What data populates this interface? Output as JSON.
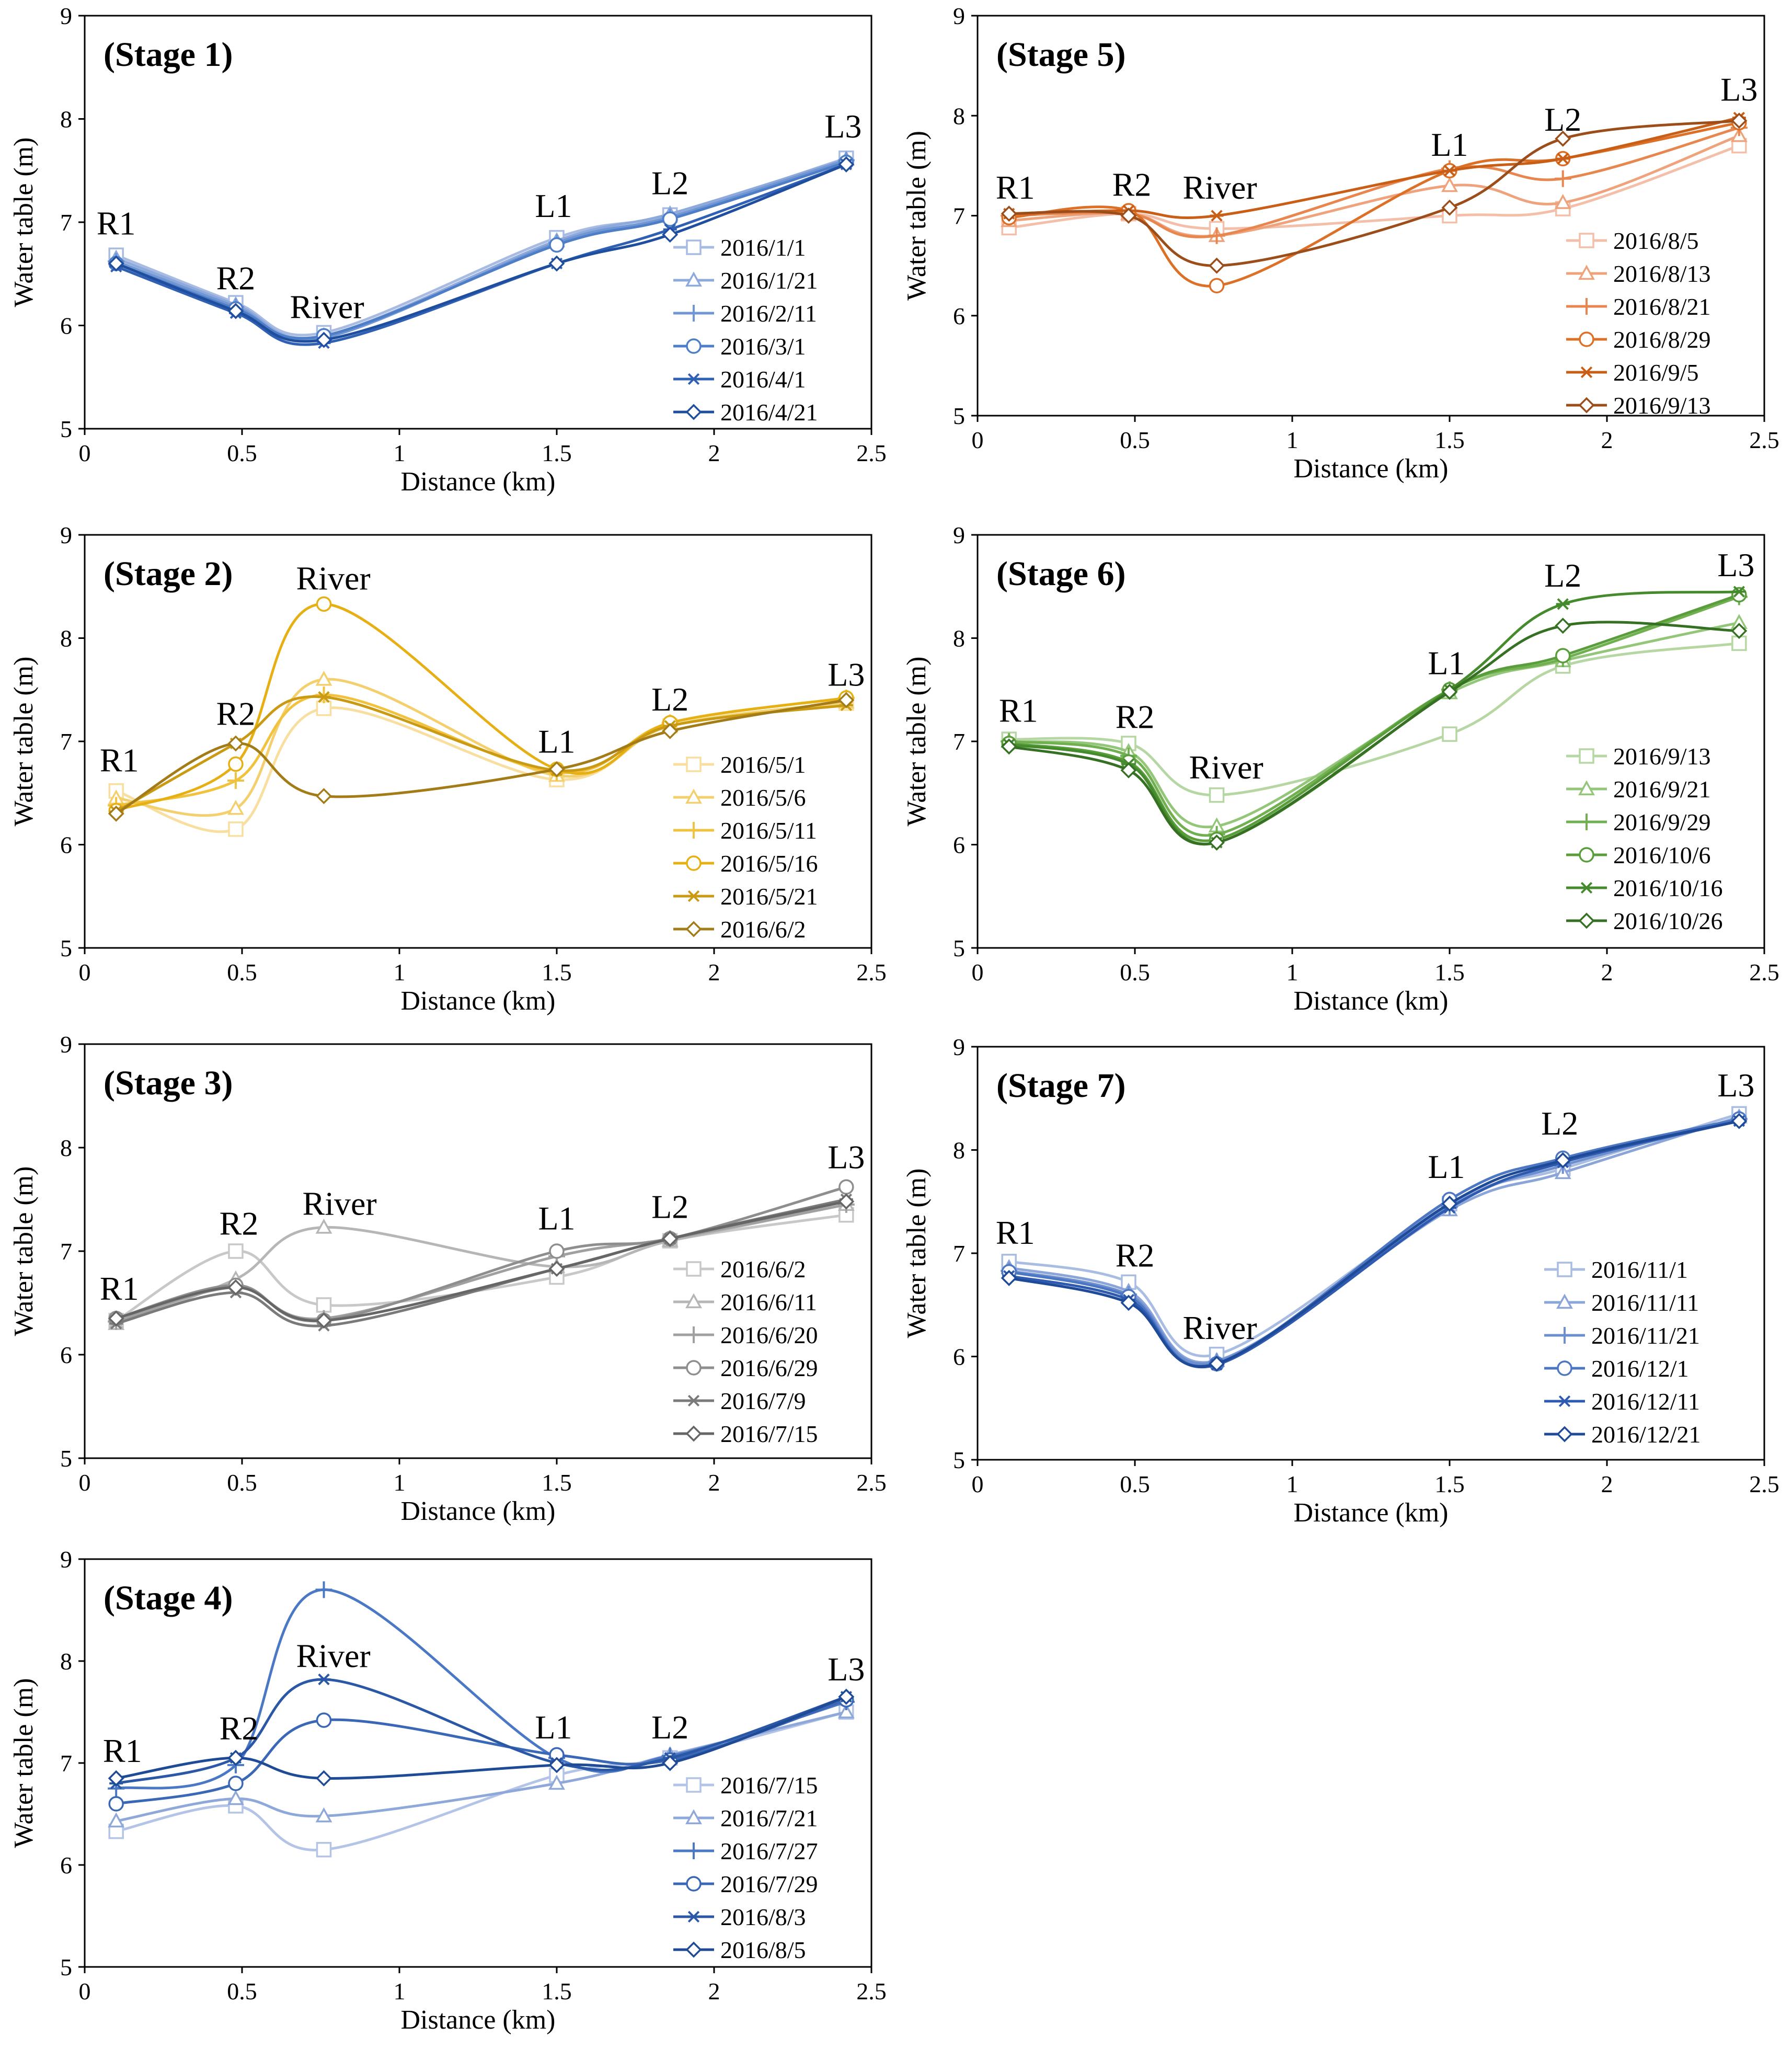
{
  "chart_data": [
    {
      "type": "line",
      "title": "(Stage 1)",
      "xlabel": "Distance (km)",
      "ylabel": "Water table (m)",
      "xlim": [
        0,
        2.5
      ],
      "ylim": [
        5,
        9
      ],
      "xticks": [
        "0",
        "0.5",
        "1",
        "1.5",
        "2",
        "2.5"
      ],
      "yticks": [
        "5",
        "6",
        "7",
        "8",
        "9"
      ],
      "x": [
        0.1,
        0.48,
        0.76,
        1.5,
        1.86,
        2.42
      ],
      "point_labels": [
        {
          "text": "R1",
          "x": 0.1,
          "y": 6.88
        },
        {
          "text": "R2",
          "x": 0.48,
          "y": 6.35
        },
        {
          "text": "River",
          "x": 0.77,
          "y": 6.07
        },
        {
          "text": "L1",
          "x": 1.49,
          "y": 7.05
        },
        {
          "text": "L2",
          "x": 1.86,
          "y": 7.27
        },
        {
          "text": "L3",
          "x": 2.41,
          "y": 7.82
        }
      ],
      "series": [
        {
          "name": "2016/1/1",
          "marker": "square",
          "color": "#a8bce3",
          "values": [
            6.68,
            6.22,
            5.93,
            6.85,
            7.07,
            7.62
          ]
        },
        {
          "name": "2016/1/21",
          "marker": "triangle",
          "color": "#8ea9dc",
          "values": [
            6.65,
            6.2,
            5.9,
            6.82,
            7.08,
            7.61
          ]
        },
        {
          "name": "2016/2/11",
          "marker": "plus",
          "color": "#7096d4",
          "values": [
            6.62,
            6.18,
            5.88,
            6.8,
            7.05,
            7.6
          ]
        },
        {
          "name": "2016/3/1",
          "marker": "circle",
          "color": "#4e7ec7",
          "values": [
            6.6,
            6.16,
            5.9,
            6.78,
            7.03,
            7.58
          ]
        },
        {
          "name": "2016/4/1",
          "marker": "star",
          "color": "#2f60b4",
          "values": [
            6.57,
            6.12,
            5.83,
            6.6,
            6.93,
            7.56
          ]
        },
        {
          "name": "2016/4/21",
          "marker": "diamond",
          "color": "#1f4e9e",
          "values": [
            6.6,
            6.14,
            5.86,
            6.6,
            6.88,
            7.56
          ]
        }
      ]
    },
    {
      "type": "line",
      "title": "(Stage 5)",
      "xlabel": "Distance (km)",
      "ylabel": "Water table (m)",
      "xlim": [
        0,
        2.5
      ],
      "ylim": [
        5,
        9
      ],
      "xticks": [
        "0",
        "0.5",
        "1",
        "1.5",
        "2",
        "2.5"
      ],
      "yticks": [
        "5",
        "6",
        "7",
        "8",
        "9"
      ],
      "x": [
        0.1,
        0.48,
        0.76,
        1.5,
        1.86,
        2.42
      ],
      "point_labels": [
        {
          "text": "R1",
          "x": 0.12,
          "y": 7.17
        },
        {
          "text": "R2",
          "x": 0.49,
          "y": 7.2
        },
        {
          "text": "River",
          "x": 0.77,
          "y": 7.17
        },
        {
          "text": "L1",
          "x": 1.5,
          "y": 7.6
        },
        {
          "text": "L2",
          "x": 1.86,
          "y": 7.85
        },
        {
          "text": "L3",
          "x": 2.42,
          "y": 8.15
        }
      ],
      "series": [
        {
          "name": "2016/8/5",
          "marker": "square",
          "color": "#f4bfa8",
          "values": [
            6.88,
            7.02,
            6.87,
            7.0,
            7.07,
            7.7
          ]
        },
        {
          "name": "2016/8/13",
          "marker": "triangle",
          "color": "#eea37c",
          "values": [
            6.95,
            7.02,
            6.8,
            7.3,
            7.13,
            7.8
          ]
        },
        {
          "name": "2016/8/21",
          "marker": "plus",
          "color": "#e7874f",
          "values": [
            7.0,
            7.02,
            6.8,
            7.47,
            7.37,
            7.88
          ]
        },
        {
          "name": "2016/8/29",
          "marker": "circle",
          "color": "#dc7027",
          "values": [
            6.98,
            7.05,
            6.3,
            7.45,
            7.57,
            7.93
          ]
        },
        {
          "name": "2016/9/5",
          "marker": "star",
          "color": "#c95e16",
          "values": [
            7.02,
            7.05,
            7.0,
            7.45,
            7.57,
            7.98
          ]
        },
        {
          "name": "2016/9/13",
          "marker": "diamond",
          "color": "#9b4d1a",
          "values": [
            7.02,
            7.0,
            6.5,
            7.08,
            7.77,
            7.95
          ]
        }
      ]
    },
    {
      "type": "line",
      "title": "(Stage 2)",
      "xlabel": "Distance (km)",
      "ylabel": "Water table (m)",
      "xlim": [
        0,
        2.5
      ],
      "ylim": [
        5,
        9
      ],
      "xticks": [
        "0",
        "0.5",
        "1",
        "1.5",
        "2",
        "2.5"
      ],
      "yticks": [
        "5",
        "6",
        "7",
        "8",
        "9"
      ],
      "x": [
        0.1,
        0.48,
        0.76,
        1.5,
        1.86,
        2.42
      ],
      "point_labels": [
        {
          "text": "R1",
          "x": 0.11,
          "y": 6.71
        },
        {
          "text": "R2",
          "x": 0.48,
          "y": 7.16
        },
        {
          "text": "River",
          "x": 0.79,
          "y": 8.47
        },
        {
          "text": "L1",
          "x": 1.5,
          "y": 6.89
        },
        {
          "text": "L2",
          "x": 1.86,
          "y": 7.3
        },
        {
          "text": "L3",
          "x": 2.42,
          "y": 7.54
        }
      ],
      "series": [
        {
          "name": "2016/5/1",
          "marker": "square",
          "color": "#f8dfa0",
          "values": [
            6.52,
            6.15,
            7.32,
            6.63,
            7.15,
            7.37
          ]
        },
        {
          "name": "2016/5/6",
          "marker": "triangle",
          "color": "#f4cf6d",
          "values": [
            6.45,
            6.35,
            7.6,
            6.67,
            7.15,
            7.38
          ]
        },
        {
          "name": "2016/5/11",
          "marker": "plus",
          "color": "#f0c23e",
          "values": [
            6.38,
            6.62,
            7.45,
            6.7,
            7.18,
            7.42
          ]
        },
        {
          "name": "2016/5/16",
          "marker": "circle",
          "color": "#e6b015",
          "values": [
            6.33,
            6.78,
            8.33,
            6.73,
            7.18,
            7.42
          ]
        },
        {
          "name": "2016/5/21",
          "marker": "star",
          "color": "#c99a12",
          "values": [
            6.32,
            6.98,
            7.43,
            6.72,
            7.15,
            7.35
          ]
        },
        {
          "name": "2016/6/2",
          "marker": "diamond",
          "color": "#a37c18",
          "values": [
            6.3,
            6.98,
            6.47,
            6.73,
            7.1,
            7.4
          ]
        }
      ]
    },
    {
      "type": "line",
      "title": "(Stage 6)",
      "xlabel": "Distance (km)",
      "ylabel": "Water table (m)",
      "xlim": [
        0,
        2.5
      ],
      "ylim": [
        5,
        9
      ],
      "xticks": [
        "0",
        "0.5",
        "1",
        "1.5",
        "2",
        "2.5"
      ],
      "yticks": [
        "5",
        "6",
        "7",
        "8",
        "9"
      ],
      "x": [
        0.1,
        0.48,
        0.76,
        1.5,
        1.86,
        2.42
      ],
      "point_labels": [
        {
          "text": "R1",
          "x": 0.13,
          "y": 7.19
        },
        {
          "text": "R2",
          "x": 0.5,
          "y": 7.13
        },
        {
          "text": "River",
          "x": 0.79,
          "y": 6.64
        },
        {
          "text": "L1",
          "x": 1.49,
          "y": 7.65
        },
        {
          "text": "L2",
          "x": 1.86,
          "y": 8.5
        },
        {
          "text": "L3",
          "x": 2.41,
          "y": 8.6
        }
      ],
      "series": [
        {
          "name": "2016/9/13",
          "marker": "square",
          "color": "#b6d7a3",
          "values": [
            7.02,
            6.98,
            6.48,
            7.07,
            7.73,
            7.95
          ]
        },
        {
          "name": "2016/9/21",
          "marker": "triangle",
          "color": "#94c67a",
          "values": [
            7.0,
            6.9,
            6.18,
            7.47,
            7.78,
            8.15
          ]
        },
        {
          "name": "2016/9/29",
          "marker": "plus",
          "color": "#70b050",
          "values": [
            7.0,
            6.86,
            6.1,
            7.5,
            7.8,
            8.4
          ]
        },
        {
          "name": "2016/10/6",
          "marker": "circle",
          "color": "#5a9e3c",
          "values": [
            6.98,
            6.8,
            6.05,
            7.5,
            7.83,
            8.42
          ]
        },
        {
          "name": "2016/10/16",
          "marker": "star",
          "color": "#458a2c",
          "values": [
            6.97,
            6.78,
            6.02,
            7.5,
            8.33,
            8.45
          ]
        },
        {
          "name": "2016/10/26",
          "marker": "diamond",
          "color": "#357023",
          "values": [
            6.95,
            6.72,
            6.02,
            7.48,
            8.12,
            8.07
          ]
        }
      ]
    },
    {
      "type": "line",
      "title": "(Stage 3)",
      "xlabel": "Distance (km)",
      "ylabel": "Water table (m)",
      "xlim": [
        0,
        2.5
      ],
      "ylim": [
        5,
        9
      ],
      "xticks": [
        "0",
        "0.5",
        "1",
        "1.5",
        "2",
        "2.5"
      ],
      "yticks": [
        "5",
        "6",
        "7",
        "8",
        "9"
      ],
      "x": [
        0.1,
        0.48,
        0.76,
        1.5,
        1.86,
        2.42
      ],
      "point_labels": [
        {
          "text": "R1",
          "x": 0.11,
          "y": 6.53
        },
        {
          "text": "R2",
          "x": 0.49,
          "y": 7.16
        },
        {
          "text": "River",
          "x": 0.81,
          "y": 7.35
        },
        {
          "text": "L1",
          "x": 1.5,
          "y": 7.21
        },
        {
          "text": "L2",
          "x": 1.86,
          "y": 7.32
        },
        {
          "text": "L3",
          "x": 2.42,
          "y": 7.8
        }
      ],
      "series": [
        {
          "name": "2016/6/2",
          "marker": "square",
          "color": "#c8c8c8",
          "values": [
            6.33,
            7.0,
            6.48,
            6.75,
            7.1,
            7.35
          ]
        },
        {
          "name": "2016/6/11",
          "marker": "triangle",
          "color": "#b6b6b6",
          "values": [
            6.3,
            6.73,
            7.23,
            6.85,
            7.1,
            7.45
          ]
        },
        {
          "name": "2016/6/20",
          "marker": "plus",
          "color": "#a0a0a0",
          "values": [
            6.32,
            6.65,
            6.35,
            6.95,
            7.12,
            7.45
          ]
        },
        {
          "name": "2016/6/29",
          "marker": "circle",
          "color": "#8e8e8e",
          "values": [
            6.35,
            6.67,
            6.33,
            7.0,
            7.12,
            7.62
          ]
        },
        {
          "name": "2016/7/9",
          "marker": "star",
          "color": "#7a7a7a",
          "values": [
            6.3,
            6.6,
            6.28,
            6.83,
            7.12,
            7.5
          ]
        },
        {
          "name": "2016/7/15",
          "marker": "diamond",
          "color": "#666666",
          "values": [
            6.35,
            6.65,
            6.33,
            6.83,
            7.12,
            7.48
          ]
        }
      ]
    },
    {
      "type": "line",
      "title": "(Stage 7)",
      "xlabel": "Distance (km)",
      "ylabel": "Water table (m)",
      "xlim": [
        0,
        2.5
      ],
      "ylim": [
        5,
        9
      ],
      "xticks": [
        "0",
        "0.5",
        "1",
        "1.5",
        "2",
        "2.5"
      ],
      "yticks": [
        "5",
        "6",
        "7",
        "8",
        "9"
      ],
      "x": [
        0.1,
        0.48,
        0.76,
        1.5,
        1.86,
        2.42
      ],
      "point_labels": [
        {
          "text": "R1",
          "x": 0.12,
          "y": 7.09
        },
        {
          "text": "R2",
          "x": 0.5,
          "y": 6.87
        },
        {
          "text": "River",
          "x": 0.77,
          "y": 6.17
        },
        {
          "text": "L1",
          "x": 1.49,
          "y": 7.73
        },
        {
          "text": "L2",
          "x": 1.85,
          "y": 8.15
        },
        {
          "text": "L3",
          "x": 2.41,
          "y": 8.52
        }
      ],
      "series": [
        {
          "name": "2016/11/1",
          "marker": "square",
          "color": "#a9bce2",
          "values": [
            6.92,
            6.72,
            6.02,
            7.48,
            7.82,
            8.35
          ]
        },
        {
          "name": "2016/11/11",
          "marker": "triangle",
          "color": "#8ba5d9",
          "values": [
            6.86,
            6.63,
            5.96,
            7.42,
            7.78,
            8.32
          ]
        },
        {
          "name": "2016/11/21",
          "marker": "plus",
          "color": "#6d8fd0",
          "values": [
            6.83,
            6.6,
            5.95,
            7.45,
            7.85,
            8.3
          ]
        },
        {
          "name": "2016/12/1",
          "marker": "circle",
          "color": "#4d77c3",
          "values": [
            6.82,
            6.58,
            5.93,
            7.52,
            7.92,
            8.3
          ]
        },
        {
          "name": "2016/12/11",
          "marker": "star",
          "color": "#2e5bb0",
          "values": [
            6.78,
            6.55,
            5.92,
            7.44,
            7.88,
            8.28
          ]
        },
        {
          "name": "2016/12/21",
          "marker": "diamond",
          "color": "#1f4a98",
          "values": [
            6.76,
            6.52,
            5.93,
            7.48,
            7.9,
            8.28
          ]
        }
      ]
    },
    {
      "type": "line",
      "title": "(Stage 4)",
      "xlabel": "Distance (km)",
      "ylabel": "Water table (m)",
      "xlim": [
        0,
        2.5
      ],
      "ylim": [
        5,
        9
      ],
      "xticks": [
        "0",
        "0.5",
        "1",
        "1.5",
        "2",
        "2.5"
      ],
      "yticks": [
        "5",
        "6",
        "7",
        "8",
        "9"
      ],
      "x": [
        0.1,
        0.48,
        0.76,
        1.5,
        1.86,
        2.42
      ],
      "point_labels": [
        {
          "text": "R1",
          "x": 0.12,
          "y": 7.01
        },
        {
          "text": "R2",
          "x": 0.49,
          "y": 7.23
        },
        {
          "text": "River",
          "x": 0.79,
          "y": 7.94
        },
        {
          "text": "L1",
          "x": 1.49,
          "y": 7.24
        },
        {
          "text": "L2",
          "x": 1.86,
          "y": 7.24
        },
        {
          "text": "L3",
          "x": 2.42,
          "y": 7.81
        }
      ],
      "series": [
        {
          "name": "2016/7/15",
          "marker": "square",
          "color": "#b3c4e6",
          "values": [
            6.33,
            6.58,
            6.15,
            6.88,
            7.05,
            7.5
          ]
        },
        {
          "name": "2016/7/21",
          "marker": "triangle",
          "color": "#8fa8da",
          "values": [
            6.43,
            6.65,
            6.48,
            6.8,
            7.08,
            7.5
          ]
        },
        {
          "name": "2016/7/27",
          "marker": "plus",
          "color": "#4a78c4",
          "values": [
            6.75,
            6.98,
            8.7,
            7.05,
            7.07,
            7.6
          ]
        },
        {
          "name": "2016/7/29",
          "marker": "circle",
          "color": "#3a68b6",
          "values": [
            6.6,
            6.8,
            7.42,
            7.08,
            7.03,
            7.62
          ]
        },
        {
          "name": "2016/8/3",
          "marker": "star",
          "color": "#2a57a6",
          "values": [
            6.8,
            7.05,
            7.82,
            7.0,
            7.05,
            7.65
          ]
        },
        {
          "name": "2016/8/5",
          "marker": "diamond",
          "color": "#1e4a96",
          "values": [
            6.85,
            7.05,
            6.85,
            6.98,
            7.0,
            7.65
          ]
        }
      ]
    }
  ]
}
